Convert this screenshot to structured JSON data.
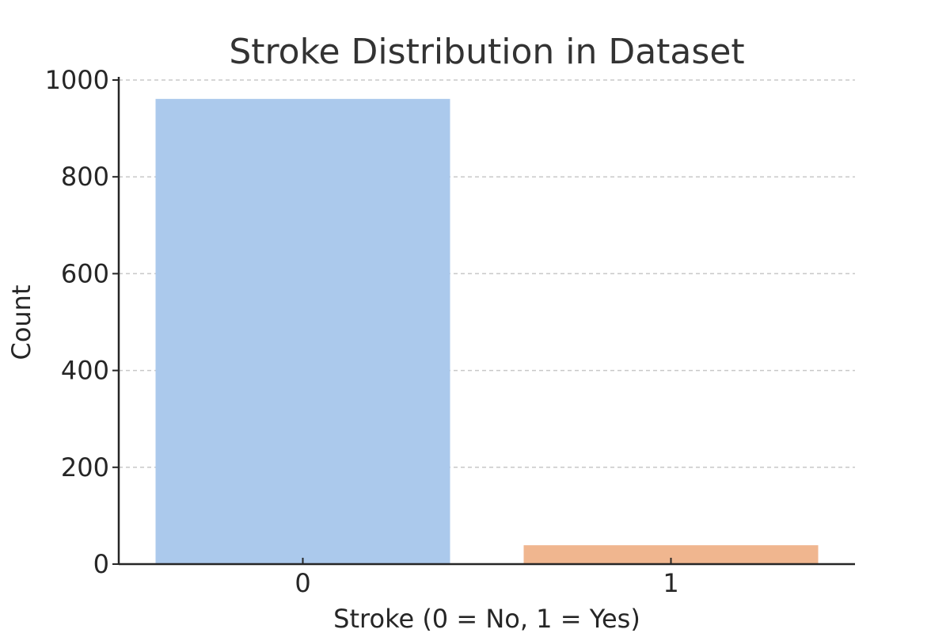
{
  "chart_data": {
    "type": "bar",
    "title": "Stroke Distribution in Dataset",
    "xlabel": "Stroke (0 = No, 1 = Yes)",
    "ylabel": "Count",
    "categories": [
      "0",
      "1"
    ],
    "values": [
      961,
      39
    ],
    "ylim": [
      0,
      1000
    ],
    "yticks": [
      0,
      200,
      400,
      600,
      800,
      1000
    ],
    "grid": "horizontal dashed",
    "colors": [
      "#abc9ec",
      "#f0b68f"
    ]
  }
}
